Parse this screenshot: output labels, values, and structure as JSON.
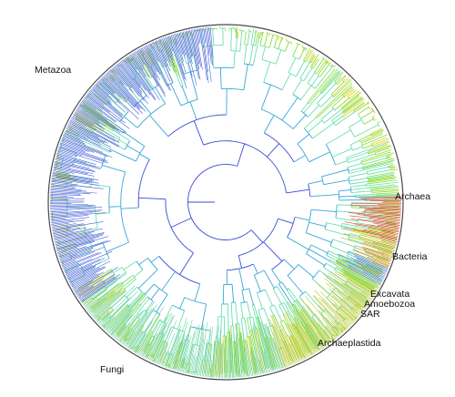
{
  "tree": {
    "ring_color": "#4a4a4a",
    "clades": [
      {
        "label": "Metazoa",
        "start_deg": 95,
        "end_deg": 215,
        "color": "#4a62d8"
      },
      {
        "label": "Fungi",
        "start_deg": 215,
        "end_deg": 290,
        "color": "#6fd1a5"
      },
      {
        "label": "Archaeplastida",
        "start_deg": 290,
        "end_deg": 332,
        "color": "#b5c93d"
      },
      {
        "label": "SAR",
        "start_deg": 332,
        "end_deg": 338,
        "color": "#4c7fd8"
      },
      {
        "label": "Amoebozoa",
        "start_deg": 338,
        "end_deg": 342,
        "color": "#e08a3c"
      },
      {
        "label": "Excavata",
        "start_deg": 342,
        "end_deg": 347,
        "color": "#c9a32d"
      },
      {
        "label": "Bacteria",
        "start_deg": 347,
        "end_deg": 360,
        "color": "#d9432f"
      },
      {
        "label": "Archaea",
        "start_deg": 0,
        "end_deg": 2,
        "color": "#d9432f"
      }
    ],
    "gradient_colors": [
      "#3b4bd6",
      "#38a7d9",
      "#6be0b0",
      "#8bdc3a",
      "#d6d52d",
      "#e08a3c",
      "#d9432f"
    ]
  }
}
